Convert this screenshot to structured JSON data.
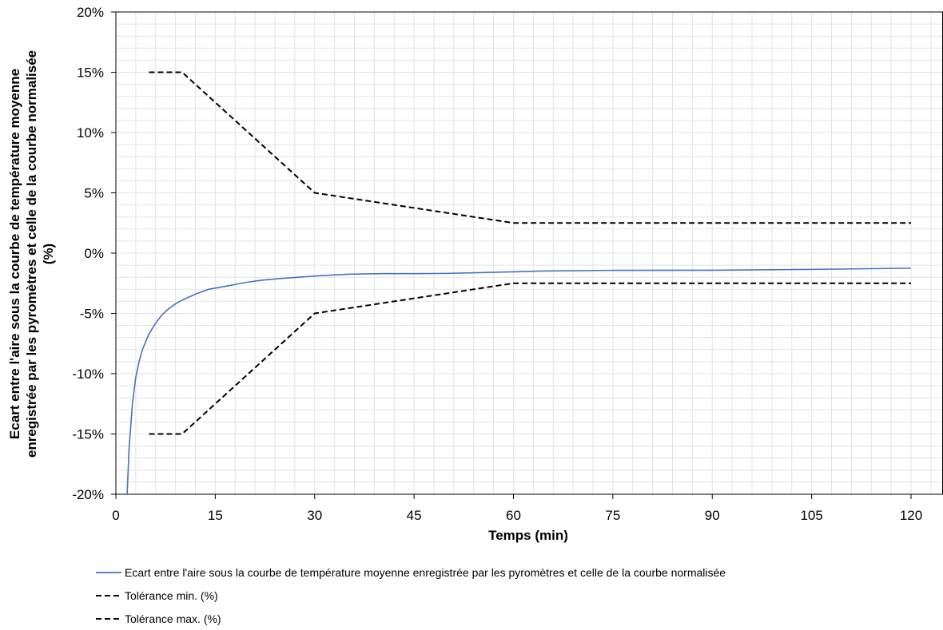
{
  "chart_data": {
    "type": "line",
    "xlabel": "Temps (min)",
    "ylabel_lines": [
      "Ecart entre l'aire sous la courbe de température moyenne",
      "enregistrée par les pyromètres et celle de la courbe normalisée",
      "(%)"
    ],
    "xlim": [
      0,
      123
    ],
    "ylim": [
      -0.2,
      0.2
    ],
    "x_ticks": [
      0,
      15,
      30,
      45,
      60,
      75,
      90,
      105,
      120
    ],
    "x_tick_labels": [
      "0",
      "15",
      "30",
      "45",
      "60",
      "75",
      "90",
      "105",
      "120"
    ],
    "y_ticks": [
      -0.2,
      -0.15,
      -0.1,
      -0.05,
      0,
      0.05,
      0.1,
      0.15,
      0.2
    ],
    "y_tick_labels": [
      "-20%",
      "-15%",
      "-10%",
      "-5%",
      "0%",
      "5%",
      "10%",
      "15%",
      "20%"
    ],
    "grid": true,
    "legend_position": "bottom",
    "series": [
      {
        "name": "Ecart entre l'aire sous la courbe de température moyenne enregistrée par les pyromètres et celle de la courbe normalisée",
        "color": "#4472c4",
        "style": "solid",
        "points": [
          [
            1.7,
            -0.2
          ],
          [
            2.0,
            -0.161
          ],
          [
            2.5,
            -0.125
          ],
          [
            3.0,
            -0.103
          ],
          [
            3.5,
            -0.09
          ],
          [
            4.0,
            -0.08
          ],
          [
            5.0,
            -0.067
          ],
          [
            6.0,
            -0.058
          ],
          [
            7.0,
            -0.051
          ],
          [
            8.0,
            -0.046
          ],
          [
            9.0,
            -0.042
          ],
          [
            10.0,
            -0.039
          ],
          [
            12.0,
            -0.034
          ],
          [
            14.0,
            -0.03
          ],
          [
            16.0,
            -0.028
          ],
          [
            18.0,
            -0.026
          ],
          [
            20.0,
            -0.024
          ],
          [
            22.0,
            -0.0225
          ],
          [
            25.0,
            -0.021
          ],
          [
            30.0,
            -0.019
          ],
          [
            35.0,
            -0.0175
          ],
          [
            40.0,
            -0.017
          ],
          [
            45.0,
            -0.017
          ],
          [
            50.0,
            -0.0168
          ],
          [
            55.0,
            -0.0162
          ],
          [
            60.0,
            -0.0155
          ],
          [
            65.0,
            -0.0148
          ],
          [
            75.0,
            -0.0143
          ],
          [
            90.0,
            -0.0142
          ],
          [
            105.0,
            -0.0135
          ],
          [
            120.0,
            -0.0125
          ]
        ]
      },
      {
        "name": "Tolérance min. (%)",
        "color": "#000000",
        "style": "dashed",
        "points": [
          [
            5,
            -0.15
          ],
          [
            10,
            -0.15
          ],
          [
            30,
            -0.05
          ],
          [
            60,
            -0.025
          ],
          [
            120,
            -0.025
          ]
        ]
      },
      {
        "name": "Tolérance max. (%)",
        "color": "#000000",
        "style": "dashed",
        "points": [
          [
            5,
            0.15
          ],
          [
            10,
            0.15
          ],
          [
            30,
            0.05
          ],
          [
            60,
            0.025
          ],
          [
            120,
            0.025
          ]
        ]
      }
    ]
  }
}
